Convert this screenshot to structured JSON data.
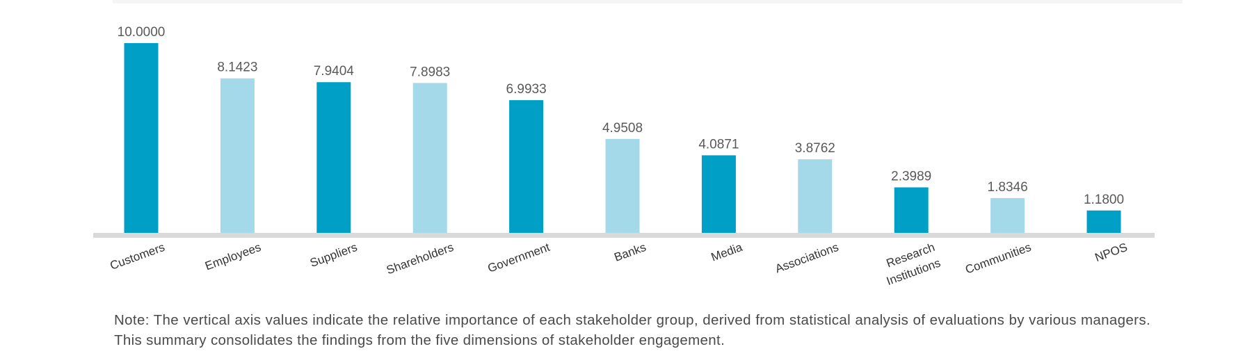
{
  "chart_data": {
    "type": "bar",
    "categories": [
      "Customers",
      "Employees",
      "Suppliers",
      "Shareholders",
      "Government",
      "Banks",
      "Media",
      "Associations",
      "Research Institutions",
      "Communities",
      "NPOS"
    ],
    "category_lines": [
      [
        "Customers"
      ],
      [
        "Employees"
      ],
      [
        "Suppliers"
      ],
      [
        "Shareholders"
      ],
      [
        "Government"
      ],
      [
        "Banks"
      ],
      [
        "Media"
      ],
      [
        "Associations"
      ],
      [
        "Research",
        "Institutions"
      ],
      [
        "Communities"
      ],
      [
        "NPOS"
      ]
    ],
    "values": [
      10.0,
      8.1423,
      7.9404,
      7.8983,
      6.9933,
      4.9508,
      4.0871,
      3.8762,
      2.3989,
      1.8346,
      1.18
    ],
    "value_labels": [
      "10.0000",
      "8.1423",
      "7.9404",
      "7.8983",
      "6.9933",
      "4.9508",
      "4.0871",
      "3.8762",
      "2.3989",
      "1.8346",
      "1.1800"
    ],
    "ylim": [
      0,
      10
    ],
    "grid": false,
    "colors": {
      "dark": "#00a0c6",
      "light": "#a3d9e9",
      "axis": "#d9d9d9",
      "label": "#595959",
      "category": "#333333"
    },
    "bar_color_pattern": [
      "dark",
      "light"
    ]
  },
  "note": "Note: The vertical axis values indicate the relative importance of each stakeholder group, derived from statistical analysis of evaluations by various managers. This summary consolidates the findings from the five dimensions of stakeholder engagement."
}
